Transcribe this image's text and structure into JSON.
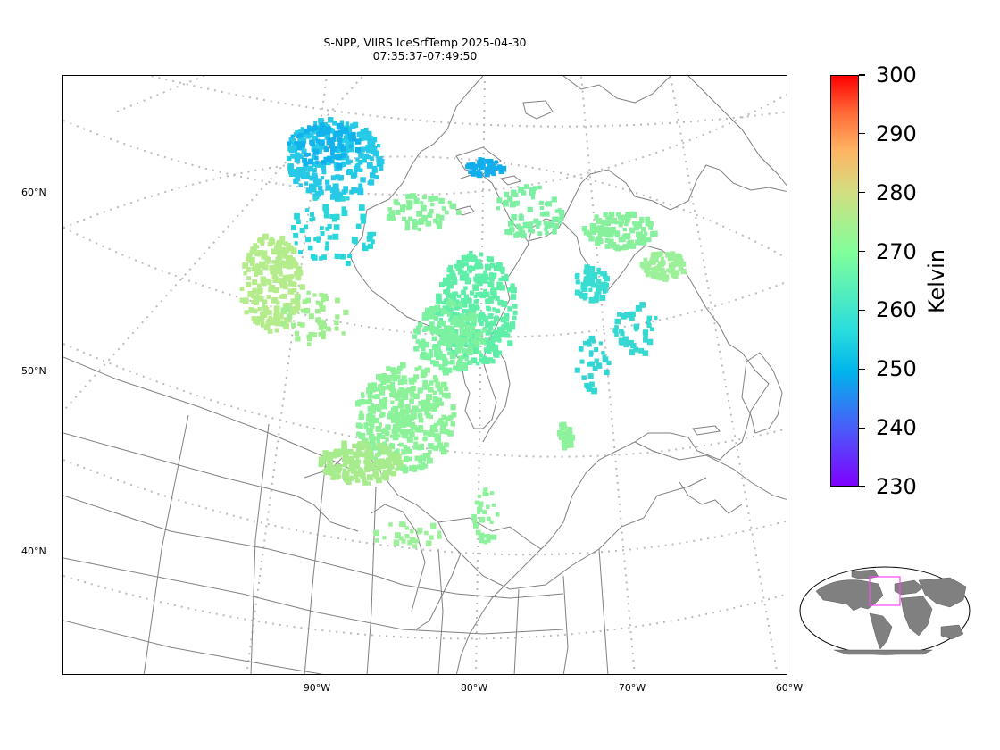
{
  "title": {
    "line1": "S-NPP, VIIRS IceSrfTemp 2025-04-30",
    "line2": "07:35:37-07:49:50"
  },
  "lat_labels": [
    "60°N",
    "50°N",
    "40°N"
  ],
  "lon_labels": [
    "90°W",
    "80°W",
    "70°W",
    "60°W"
  ],
  "colorbar": {
    "unit": "Kelvin",
    "min": 230,
    "max": 300,
    "ticks": [
      "230",
      "240",
      "250",
      "260",
      "270",
      "280",
      "290",
      "300"
    ],
    "colormap": "rainbow"
  },
  "colors": {
    "coastline": "#808080",
    "graticule": "#bbbbbb",
    "land_inset": "#808080",
    "inset_box": "#ff44ff"
  },
  "inset": {
    "type": "world-locator",
    "marked_region": "eastern Canada / Great Lakes"
  }
}
